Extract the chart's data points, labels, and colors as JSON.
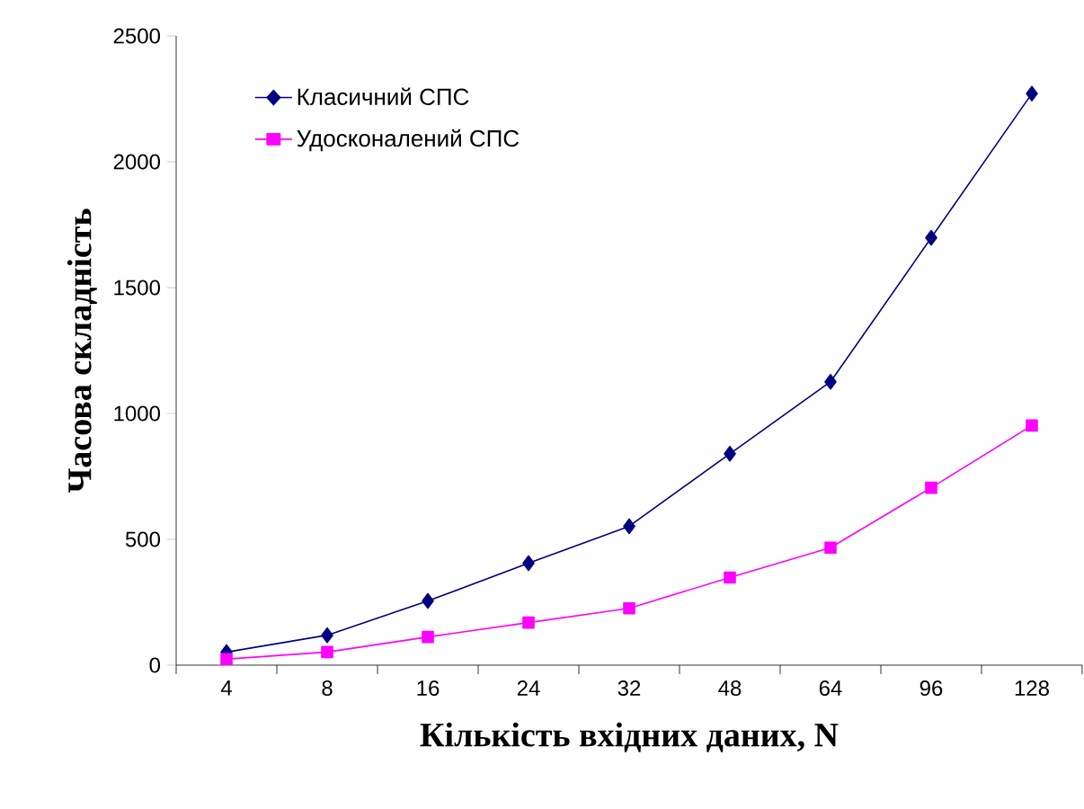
{
  "chart_data": {
    "type": "line",
    "xlabel": "Кількість вхідних даних, N",
    "ylabel": "Часова складність",
    "categories": [
      "4",
      "8",
      "16",
      "24",
      "32",
      "48",
      "64",
      "96",
      "128"
    ],
    "series": [
      {
        "name": "Класичний СПС",
        "color": "#000080",
        "marker": "diamond",
        "values": [
          52,
          119,
          255,
          405,
          552,
          840,
          1126,
          1698,
          2271
        ]
      },
      {
        "name": "Удосконалений СПС",
        "color": "#ff00ff",
        "marker": "square",
        "values": [
          24,
          52,
          112,
          169,
          226,
          348,
          467,
          705,
          952
        ]
      }
    ],
    "ylim": [
      0,
      2500
    ],
    "yticks": [
      0,
      500,
      1000,
      1500,
      2000,
      2500
    ],
    "grid": false,
    "legend": "top left"
  }
}
